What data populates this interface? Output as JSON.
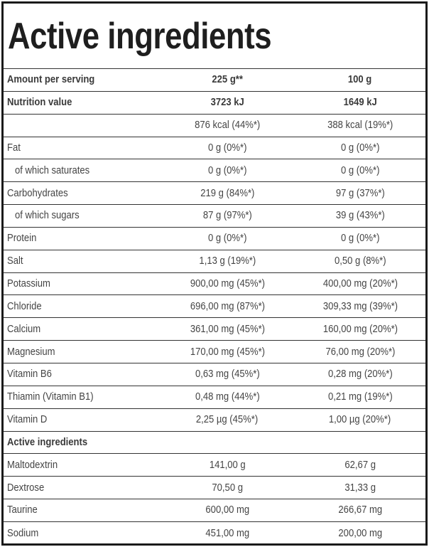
{
  "title": "Active ingredients",
  "header": {
    "label": "Amount per serving",
    "col1": "225 g**",
    "col2": "100 g"
  },
  "rows": [
    {
      "label": "Nutrition value",
      "v1": "3723 kJ",
      "v2": "1649 kJ",
      "bold": true
    },
    {
      "label": "",
      "v1": "876 kcal (44%*)",
      "v2": "388 kcal (19%*)"
    },
    {
      "label": "Fat",
      "v1": "0 g (0%*)",
      "v2": "0 g (0%*)"
    },
    {
      "label": "of which saturates",
      "v1": "0 g (0%*)",
      "v2": "0 g (0%*)",
      "indent": true
    },
    {
      "label": "Carbohydrates",
      "v1": "219 g (84%*)",
      "v2": "97 g (37%*)"
    },
    {
      "label": "of which sugars",
      "v1": "87 g (97%*)",
      "v2": "39 g (43%*)",
      "indent": true
    },
    {
      "label": "Protein",
      "v1": "0 g (0%*)",
      "v2": "0 g (0%*)"
    },
    {
      "label": "Salt",
      "v1": "1,13 g (19%*)",
      "v2": "0,50 g (8%*)"
    },
    {
      "label": "Potassium",
      "v1": "900,00 mg (45%*)",
      "v2": "400,00 mg (20%*)"
    },
    {
      "label": "Chloride",
      "v1": "696,00 mg (87%*)",
      "v2": "309,33 mg (39%*)"
    },
    {
      "label": "Calcium",
      "v1": "361,00 mg (45%*)",
      "v2": "160,00 mg (20%*)"
    },
    {
      "label": "Magnesium",
      "v1": "170,00 mg (45%*)",
      "v2": "76,00 mg (20%*)"
    },
    {
      "label": "Vitamin B6",
      "v1": "0,63 mg (45%*)",
      "v2": "0,28 mg (20%*)"
    },
    {
      "label": "Thiamin (Vitamin B1)",
      "v1": "0,48 mg (44%*)",
      "v2": "0,21 mg (19%*)"
    },
    {
      "label": "Vitamin D",
      "v1": "2,25 µg (45%*)",
      "v2": "1,00 µg (20%*)"
    },
    {
      "label": "Active ingredients",
      "v1": "",
      "v2": "",
      "bold": true
    },
    {
      "label": "Maltodextrin",
      "v1": "141,00 g",
      "v2": "62,67 g"
    },
    {
      "label": "Dextrose",
      "v1": "70,50 g",
      "v2": "31,33 g"
    },
    {
      "label": "Taurine",
      "v1": "600,00 mg",
      "v2": "266,67 mg"
    },
    {
      "label": "Sodium",
      "v1": "451,00 mg",
      "v2": "200,00 mg"
    }
  ]
}
